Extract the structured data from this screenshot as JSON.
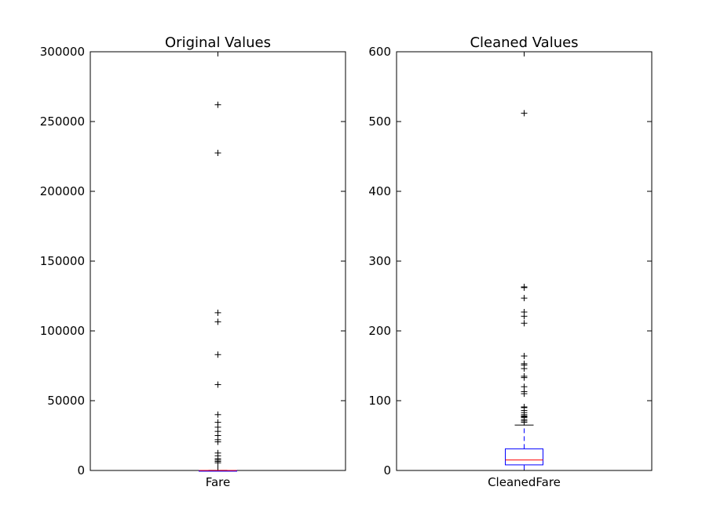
{
  "chart_data": [
    {
      "type": "box",
      "title": "Original Values",
      "categories": [
        "Fare"
      ],
      "ylim": [
        0,
        300000
      ],
      "yticks": [
        0,
        50000,
        100000,
        150000,
        200000,
        250000,
        300000
      ],
      "ytick_labels": [
        "0",
        "50000",
        "100000",
        "150000",
        "200000",
        "250000",
        "300000"
      ],
      "box": {
        "q1": 10,
        "median": 20,
        "q3": 30,
        "whisker_low": 0,
        "whisker_high": 65
      },
      "fliers": [
        262000,
        227500,
        113000,
        106500,
        83000,
        61500,
        40000,
        34500,
        31000,
        28000,
        25000,
        22000,
        20500,
        12500,
        10500,
        8500,
        7500,
        6500,
        5500
      ]
    },
    {
      "type": "box",
      "title": "Cleaned Values",
      "categories": [
        "CleanedFare"
      ],
      "ylim": [
        0,
        600
      ],
      "yticks": [
        0,
        100,
        200,
        300,
        400,
        500,
        600
      ],
      "ytick_labels": [
        "0",
        "100",
        "200",
        "300",
        "400",
        "500",
        "600"
      ],
      "box": {
        "q1": 8,
        "median": 15,
        "q3": 31,
        "whisker_low": 0,
        "whisker_high": 65
      },
      "fliers": [
        512,
        263,
        262,
        247,
        227,
        221,
        211,
        164,
        153,
        151,
        146,
        135,
        133,
        120,
        113,
        110,
        91,
        90,
        86,
        83,
        80,
        78,
        77,
        76,
        73,
        71,
        69
      ]
    }
  ]
}
